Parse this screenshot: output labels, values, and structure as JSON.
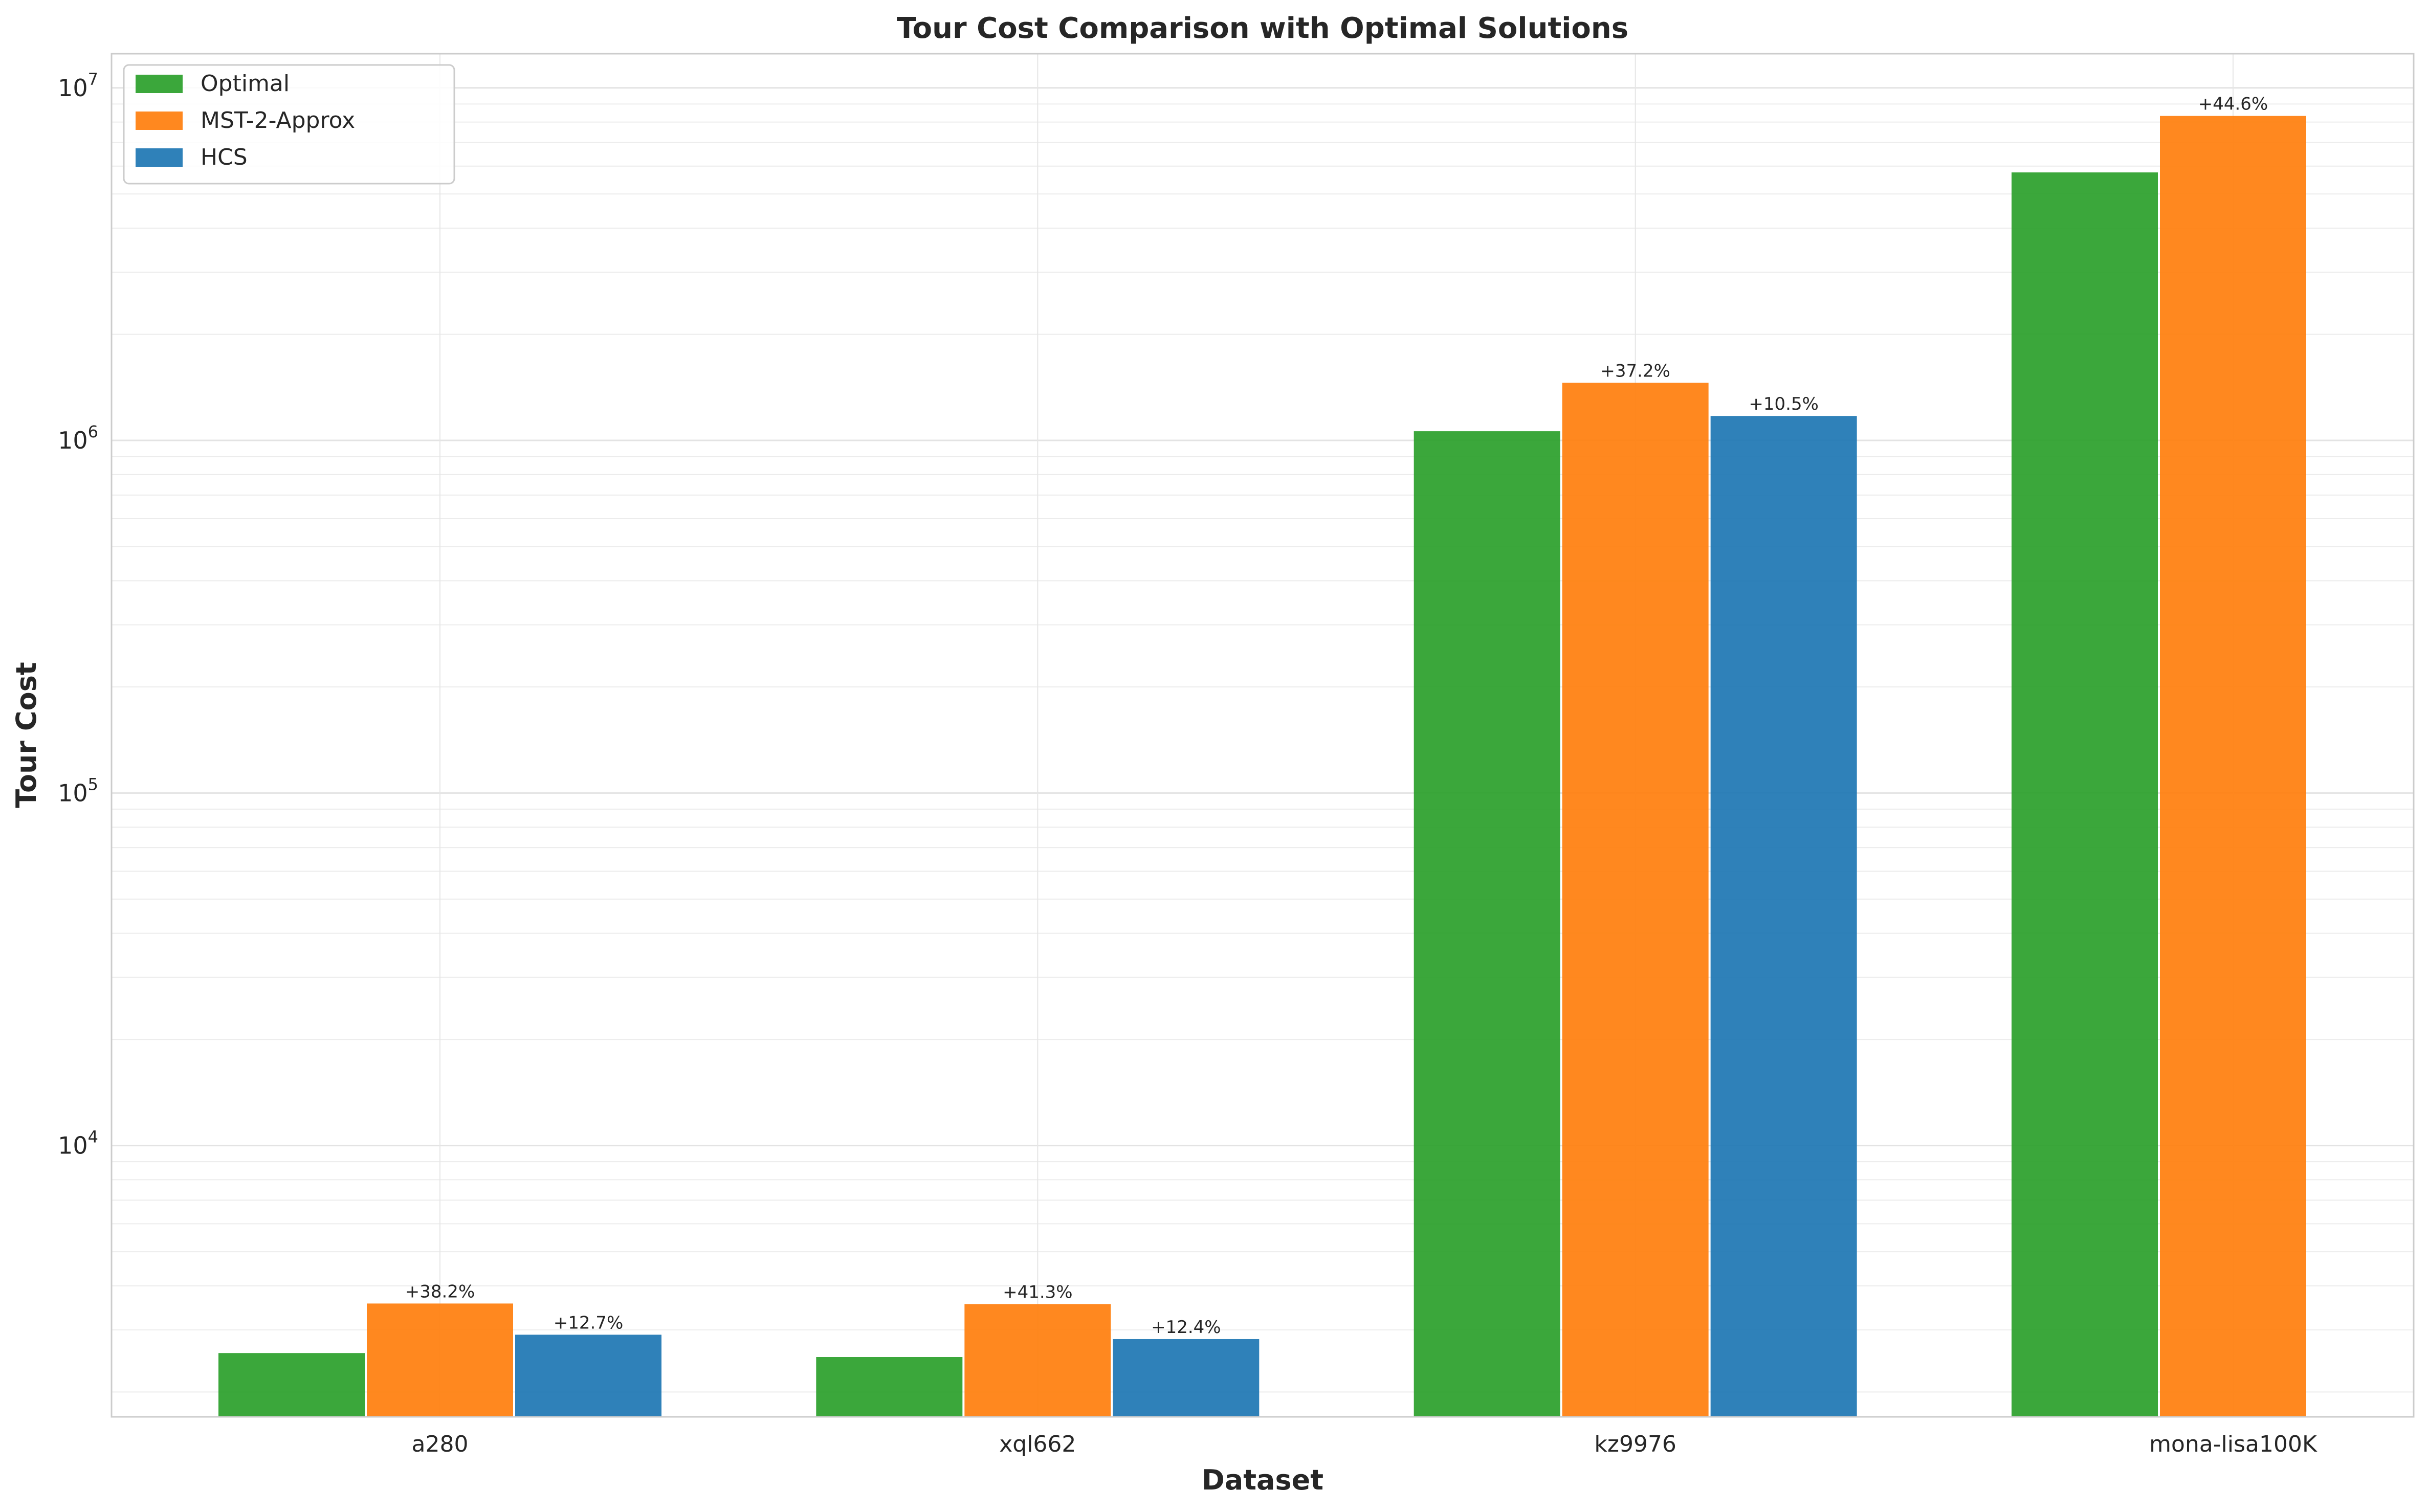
{
  "chart_data": {
    "type": "bar",
    "title": "Tour Cost Comparison with Optimal Solutions",
    "xlabel": "Dataset",
    "ylabel": "Tour Cost",
    "yscale": "log",
    "ylim": [
      1700,
      12500000
    ],
    "y_ticks": [
      {
        "value": 10000,
        "base": "10",
        "exp": "4"
      },
      {
        "value": 100000,
        "base": "10",
        "exp": "5"
      },
      {
        "value": 1000000,
        "base": "10",
        "exp": "6"
      },
      {
        "value": 10000000,
        "base": "10",
        "exp": "7"
      }
    ],
    "grid": true,
    "legend_position": "top-left",
    "categories": [
      "a280",
      "xql662",
      "kz9976",
      "mona-lisa100K"
    ],
    "series": [
      {
        "name": "Optimal",
        "color": "#2ca02c",
        "values": [
          2579,
          2513,
          1061881,
          5757191
        ]
      },
      {
        "name": "MST-2-Approx",
        "color": "#ff7f0e",
        "values": [
          3564,
          3551,
          1456856,
          8324899
        ]
      },
      {
        "name": "HCS",
        "color": "#1f77b4",
        "values": [
          2907,
          2825,
          1173377,
          null
        ]
      }
    ],
    "annotations": [
      {
        "series": 1,
        "category": 0,
        "text": "+38.2%"
      },
      {
        "series": 2,
        "category": 0,
        "text": "+12.7%"
      },
      {
        "series": 1,
        "category": 1,
        "text": "+41.3%"
      },
      {
        "series": 2,
        "category": 1,
        "text": "+12.4%"
      },
      {
        "series": 1,
        "category": 2,
        "text": "+37.2%"
      },
      {
        "series": 2,
        "category": 2,
        "text": "+10.5%"
      },
      {
        "series": 1,
        "category": 3,
        "text": "+44.6%"
      }
    ]
  }
}
